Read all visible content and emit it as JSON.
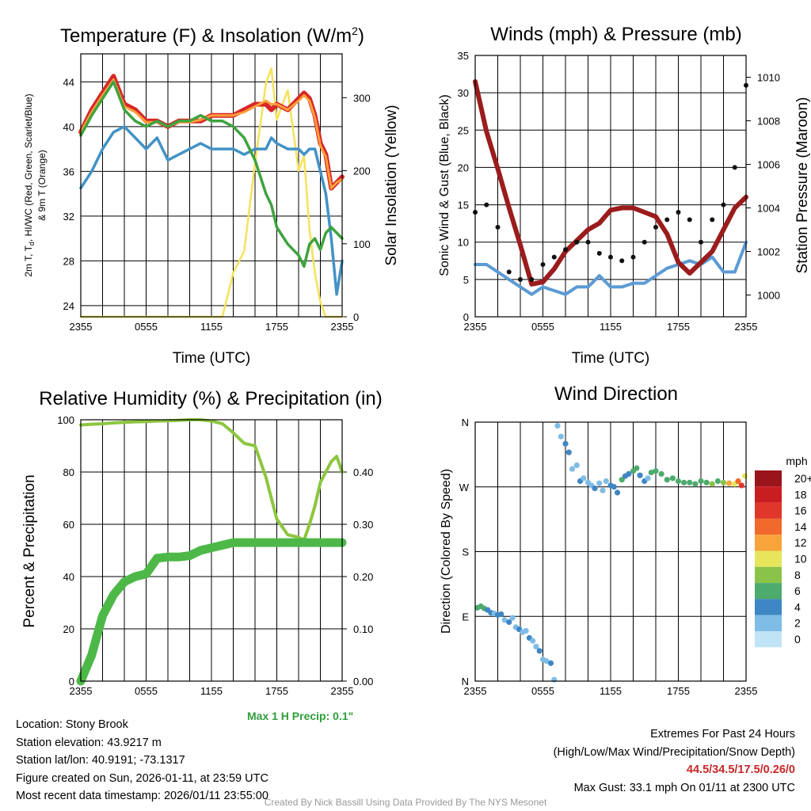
{
  "chart_data": [
    {
      "type": "line",
      "title": "Temperature (F) & Insolation (W/m",
      "title_sup": "2",
      "title_end": ")",
      "ylabel_left": [
        "2m T, T",
        "d",
        ", HI/WC (Red, Green, Scarlet/Blue)",
        "& 9m T (Orange)"
      ],
      "ylabel_right": "Solar Insolation (Yellow)",
      "xlabel": "Time (UTC)",
      "x_ticks": [
        "2355",
        "0555",
        "1155",
        "1755",
        "2355"
      ],
      "ylim": [
        23,
        46.5
      ],
      "y_ticks": [
        24,
        28,
        32,
        36,
        40,
        44
      ],
      "y2lim": [
        0,
        360
      ],
      "y2_ticks": [
        0,
        100,
        200,
        300
      ],
      "x_hours": [
        0,
        1,
        2,
        3,
        4,
        5,
        6,
        7,
        8,
        9,
        10,
        11,
        12,
        13,
        14,
        15,
        16,
        17,
        17.5,
        18,
        19,
        20,
        20.5,
        21,
        21.5,
        22,
        22.5,
        23,
        23.5,
        24
      ],
      "series": [
        {
          "name": "2m T",
          "color": "#d62728",
          "axis": "left",
          "values": [
            39.5,
            41.5,
            43,
            44.5,
            42,
            41.5,
            40.5,
            40.5,
            40,
            40.5,
            40.5,
            40.5,
            41,
            41,
            41,
            41.5,
            42,
            42,
            41.5,
            42,
            41.5,
            42.5,
            43,
            42.5,
            41,
            38.5,
            37.5,
            34.5,
            35,
            35.5
          ]
        },
        {
          "name": "9m T",
          "color": "#ff9f3a",
          "axis": "left",
          "values": [
            39.5,
            41.3,
            42.8,
            44.2,
            41.8,
            41.3,
            40.4,
            40.4,
            40,
            40.4,
            40.4,
            40.6,
            41,
            41,
            41,
            41.3,
            41.8,
            42.3,
            42,
            42,
            41.5,
            42.3,
            42.8,
            42.3,
            40.8,
            38.3,
            37.3,
            34.5,
            35,
            35.3
          ]
        },
        {
          "name": "HI/WC",
          "color": "#3fa33f",
          "axis": "left",
          "values": [
            39.2,
            41,
            42.5,
            44,
            41.5,
            40.5,
            40,
            40.5,
            40,
            40.5,
            40.5,
            41,
            40.5,
            40.5,
            40,
            39,
            37,
            34,
            33,
            31,
            29.5,
            28.5,
            27.5,
            29.5,
            30,
            29,
            30.5,
            31,
            30.5,
            30
          ]
        },
        {
          "name": "Td",
          "color": "#4292c6",
          "axis": "left",
          "values": [
            34.5,
            36,
            38,
            39.5,
            40,
            39,
            38,
            39,
            37,
            37.5,
            38,
            38.5,
            38,
            38,
            38,
            37.5,
            38,
            38,
            39,
            38.5,
            38,
            38,
            37.5,
            38,
            38,
            36,
            34,
            30,
            25,
            28
          ]
        },
        {
          "name": "Solar Insolation",
          "color": "#f5e25a",
          "axis": "right",
          "values": [
            0,
            0,
            0,
            0,
            0,
            0,
            0,
            0,
            0,
            0,
            0,
            0,
            0,
            0,
            60,
            90,
            210,
            320,
            340,
            270,
            310,
            200,
            220,
            120,
            60,
            20,
            0,
            0,
            0,
            0
          ]
        }
      ]
    },
    {
      "type": "scatter",
      "title": "Winds (mph) & Pressure (mb)",
      "ylabel_left": "Sonic Wind & Gust (Blue, Black)",
      "ylabel_right": "Station Pressure (Maroon)",
      "xlabel": "Time (UTC)",
      "x_ticks": [
        "2355",
        "0555",
        "1155",
        "1755",
        "2355"
      ],
      "ylim": [
        0,
        35
      ],
      "y_ticks": [
        0,
        5,
        10,
        15,
        20,
        25,
        30,
        35
      ],
      "y2lim": [
        999,
        1011
      ],
      "y2_ticks": [
        1000,
        1002,
        1004,
        1006,
        1008,
        1010
      ],
      "x_hours": [
        0,
        1,
        2,
        3,
        4,
        5,
        6,
        7,
        8,
        9,
        10,
        11,
        12,
        13,
        14,
        15,
        16,
        17,
        18,
        19,
        20,
        21,
        22,
        23,
        24
      ],
      "series": [
        {
          "name": "Pressure",
          "color": "#9b1c1c",
          "axis": "right",
          "values": [
            1009.8,
            1007.5,
            1005.8,
            1004,
            1002.3,
            1000.5,
            1000.6,
            1001.2,
            1002,
            1002.5,
            1003,
            1003.3,
            1003.9,
            1004,
            1004,
            1003.8,
            1003.6,
            1002.8,
            1001.5,
            1001,
            1001.5,
            1002,
            1003,
            1004,
            1004.5
          ]
        },
        {
          "name": "Sonic Wind",
          "color": "#5b9bd5",
          "axis": "left",
          "values": [
            7,
            7,
            6,
            5,
            4,
            3,
            4,
            3.5,
            3,
            4,
            4,
            5.5,
            4,
            4,
            4.5,
            4.5,
            5.5,
            6.5,
            7,
            7.5,
            7,
            8,
            6,
            6,
            10
          ]
        },
        {
          "name": "Gust",
          "color": "#111111",
          "axis": "left",
          "values": [
            14,
            15,
            12,
            6,
            5,
            5,
            7,
            8,
            9,
            10,
            10,
            8.5,
            8,
            7.5,
            8,
            10,
            12,
            13,
            14,
            13,
            10,
            13,
            15,
            20,
            31
          ]
        }
      ]
    },
    {
      "type": "line",
      "title": "Relative Humidity (%) & Precipitation (in)",
      "ylabel_left": "Percent & Precipitation",
      "x_ticks": [
        "2355",
        "0555",
        "1155",
        "1755",
        "2355"
      ],
      "ylim": [
        0,
        100
      ],
      "y_ticks": [
        0,
        20,
        40,
        60,
        80,
        100
      ],
      "y2lim": [
        0,
        0.5
      ],
      "y2_ticks": [
        "0.00",
        "0.10",
        "0.20",
        "0.30",
        "0.40"
      ],
      "x_hours": [
        0,
        1,
        2,
        3,
        4,
        5,
        6,
        7,
        8,
        9,
        10,
        11,
        12,
        13,
        14,
        15,
        16,
        17,
        17.5,
        18,
        19,
        20,
        20.5,
        21,
        21.5,
        22,
        22.5,
        23,
        23.5,
        24
      ],
      "series": [
        {
          "name": "Relative Humidity",
          "color": "#8dc63f",
          "axis": "left",
          "values": [
            98,
            98.3,
            98.5,
            98.8,
            99,
            99.2,
            99.3,
            99.5,
            99.6,
            99.8,
            100,
            100,
            99.5,
            98.5,
            95,
            91,
            90,
            78,
            70,
            62,
            56,
            55,
            54,
            60,
            67,
            76,
            80,
            84,
            86,
            80
          ]
        },
        {
          "name": "Precipitation",
          "color": "#4db848",
          "axis": "left",
          "values": [
            0,
            10,
            25,
            33,
            38,
            40,
            41,
            47,
            47.5,
            47.5,
            48,
            50,
            51,
            52,
            53,
            53,
            53,
            53,
            53,
            53,
            53,
            53,
            53,
            53,
            53,
            53,
            53,
            53,
            53,
            53
          ]
        }
      ],
      "annotation": "Max 1 H Precip: 0.1\""
    },
    {
      "type": "scatter",
      "title": "Wind Direction",
      "ylabel_left": "Direction (Colored By Speed)",
      "x_ticks": [
        "2355",
        "0555",
        "1155",
        "1755",
        "2355"
      ],
      "y_ticks": [
        "N",
        "E",
        "S",
        "W",
        "N"
      ],
      "ylim": [
        0,
        360
      ],
      "legend_title": "mph",
      "legend_levels": [
        "20+",
        "18",
        "16",
        "14",
        "12",
        "10",
        "8",
        "6",
        "4",
        "2",
        "0"
      ],
      "legend_colors": [
        "#99141b",
        "#c81e22",
        "#e0362b",
        "#f26a2b",
        "#f8a43b",
        "#e6e55c",
        "#8bc34a",
        "#4dab6d",
        "#3f86c4",
        "#7fbce6",
        "#c0e4f5"
      ],
      "x_hours": [
        0.2,
        0.5,
        0.8,
        1.1,
        1.4,
        1.7,
        2.0,
        2.3,
        2.6,
        3.0,
        3.3,
        3.6,
        3.9,
        4.2,
        4.5,
        4.8,
        5.1,
        5.4,
        5.7,
        6.0,
        6.3,
        6.7,
        7.0,
        7.3,
        7.6,
        8.0,
        8.3,
        8.6,
        9.0,
        9.3,
        9.6,
        10.0,
        10.3,
        10.6,
        11.0,
        11.3,
        11.6,
        12.0,
        12.3,
        12.6,
        13.0,
        13.3,
        13.6,
        14.0,
        14.3,
        14.6,
        15.0,
        15.3,
        15.6,
        16.0,
        16.5,
        17.0,
        17.5,
        18.0,
        18.5,
        19.0,
        19.5,
        20.0,
        20.5,
        21.0,
        21.5,
        22.0,
        22.5,
        23.0,
        23.3,
        23.6,
        23.9
      ],
      "directions": [
        102,
        104,
        101,
        99,
        95,
        94,
        92,
        93,
        85,
        82,
        88,
        75,
        72,
        68,
        70,
        60,
        56,
        48,
        42,
        30,
        28,
        25,
        2,
        355,
        340,
        330,
        318,
        295,
        300,
        278,
        282,
        276,
        272,
        268,
        275,
        265,
        278,
        272,
        270,
        262,
        280,
        285,
        288,
        292,
        296,
        286,
        278,
        282,
        290,
        292,
        288,
        280,
        282,
        278,
        276,
        276,
        274,
        278,
        276,
        274,
        278,
        276,
        275,
        274,
        278,
        272,
        285
      ],
      "speeds": [
        7,
        6,
        7,
        5,
        4,
        3,
        5,
        4,
        3,
        4,
        2,
        3,
        5,
        3,
        2,
        4,
        2,
        3,
        4,
        3,
        2,
        4,
        3,
        2,
        3,
        4,
        4,
        2,
        3,
        4,
        3,
        2,
        2,
        4,
        3,
        2,
        3,
        4,
        5,
        4,
        6,
        5,
        4,
        6,
        7,
        5,
        4,
        3,
        7,
        6,
        7,
        6,
        7,
        7,
        6,
        7,
        7,
        6,
        7,
        8,
        7,
        8,
        12,
        10,
        15,
        17,
        10
      ]
    }
  ],
  "info": {
    "location": "Location: Stony Brook",
    "elevation": "Station elevation: 43.9217 m",
    "latlon": "Station lat/lon: 40.9191; -73.1317",
    "created": "Figure created on Sun, 2026-01-11, at 23:59 UTC",
    "recent": "Most recent data timestamp: 2026/01/11 23:55:00"
  },
  "extremes": {
    "title": "Extremes For Past 24 Hours",
    "legend": "(High/Low/Max Wind/Precipitation/Snow Depth)",
    "values": "44.5/34.5/17.5/0.26/0",
    "gust": "Max Gust: 33.1 mph On 01/11 at 2300 UTC"
  },
  "credit": "Created By Nick Bassill Using Data Provided By The NYS Mesonet"
}
